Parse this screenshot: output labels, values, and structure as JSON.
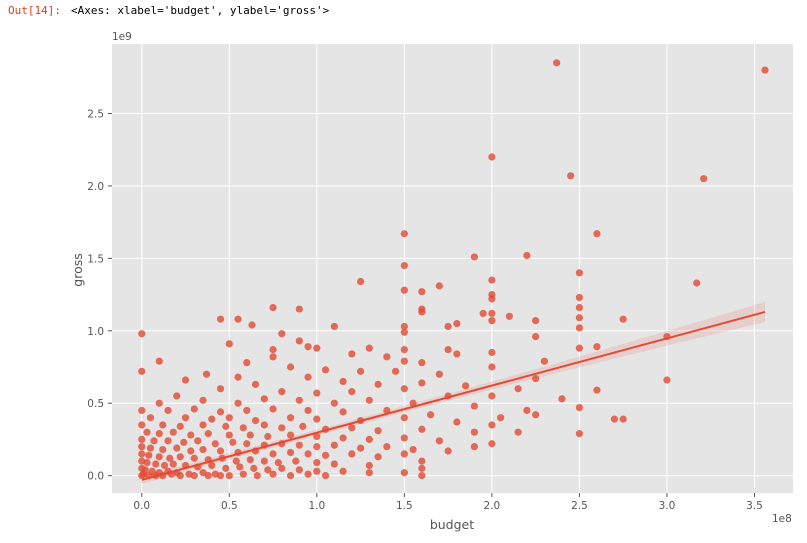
{
  "output": {
    "prompt": "Out[14]:",
    "repr": "<Axes: xlabel='budget', ylabel='gross'>"
  },
  "chart_data": {
    "type": "scatter",
    "style": "ggplot regplot with linear fit and confidence band",
    "xlabel": "budget",
    "ylabel": "gross",
    "x_offset_label": "1e8",
    "y_offset_label": "1e9",
    "xlim": [
      -0.17,
      3.72
    ],
    "ylim": [
      -0.12,
      2.98
    ],
    "xticks": [
      "0.0",
      "0.5",
      "1.0",
      "1.5",
      "2.0",
      "2.5",
      "3.0",
      "3.5"
    ],
    "yticks": [
      "0.0",
      "0.5",
      "1.0",
      "1.5",
      "2.0",
      "2.5"
    ],
    "grid": true,
    "colors": {
      "points": "#e24a33",
      "line": "#e24a33",
      "background": "#e5e5e5",
      "grid": "#ffffff"
    },
    "regression": {
      "x": [
        0.0,
        3.56
      ],
      "y": [
        -0.03,
        1.13
      ],
      "ci_halfwidth": [
        0.02,
        0.07
      ]
    },
    "points": [
      [
        2.37,
        2.85
      ],
      [
        3.56,
        2.8
      ],
      [
        2.0,
        2.2
      ],
      [
        2.45,
        2.07
      ],
      [
        3.21,
        2.05
      ],
      [
        2.6,
        1.67
      ],
      [
        1.5,
        1.67
      ],
      [
        1.9,
        1.51
      ],
      [
        2.2,
        1.52
      ],
      [
        1.5,
        1.45
      ],
      [
        2.5,
        1.4
      ],
      [
        3.17,
        1.33
      ],
      [
        2.0,
        1.35
      ],
      [
        1.25,
        1.34
      ],
      [
        1.7,
        1.31
      ],
      [
        1.5,
        1.28
      ],
      [
        1.6,
        1.27
      ],
      [
        2.0,
        1.25
      ],
      [
        2.5,
        1.23
      ],
      [
        2.0,
        1.22
      ],
      [
        2.5,
        1.16
      ],
      [
        1.6,
        1.15
      ],
      [
        0.75,
        1.16
      ],
      [
        0.9,
        1.15
      ],
      [
        1.95,
        1.12
      ],
      [
        2.0,
        1.12
      ],
      [
        1.6,
        1.13
      ],
      [
        2.1,
        1.1
      ],
      [
        2.5,
        1.09
      ],
      [
        0.45,
        1.08
      ],
      [
        0.55,
        1.08
      ],
      [
        2.75,
        1.08
      ],
      [
        2.25,
        1.07
      ],
      [
        2.0,
        1.07
      ],
      [
        1.8,
        1.05
      ],
      [
        1.75,
        1.03
      ],
      [
        0.63,
        1.04
      ],
      [
        1.1,
        1.03
      ],
      [
        1.5,
        1.03
      ],
      [
        2.5,
        1.02
      ],
      [
        0.0,
        0.98
      ],
      [
        1.5,
        0.99
      ],
      [
        0.8,
        0.98
      ],
      [
        2.25,
        0.96
      ],
      [
        3.0,
        0.96
      ],
      [
        0.5,
        0.91
      ],
      [
        0.9,
        0.93
      ],
      [
        0.95,
        0.89
      ],
      [
        1.0,
        0.88
      ],
      [
        2.5,
        0.88
      ],
      [
        2.6,
        0.89
      ],
      [
        1.3,
        0.88
      ],
      [
        1.5,
        0.87
      ],
      [
        1.75,
        0.87
      ],
      [
        0.75,
        0.87
      ],
      [
        1.2,
        0.84
      ],
      [
        2.0,
        0.85
      ],
      [
        1.8,
        0.84
      ],
      [
        1.4,
        0.82
      ],
      [
        0.1,
        0.79
      ],
      [
        0.75,
        0.82
      ],
      [
        1.5,
        0.79
      ],
      [
        2.3,
        0.79
      ],
      [
        1.6,
        0.78
      ],
      [
        0.6,
        0.78
      ],
      [
        0.0,
        0.72
      ],
      [
        0.37,
        0.7
      ],
      [
        0.85,
        0.75
      ],
      [
        1.05,
        0.73
      ],
      [
        1.25,
        0.72
      ],
      [
        1.45,
        0.72
      ],
      [
        2.0,
        0.75
      ],
      [
        2.25,
        0.67
      ],
      [
        1.7,
        0.7
      ],
      [
        0.95,
        0.68
      ],
      [
        0.55,
        0.68
      ],
      [
        0.25,
        0.66
      ],
      [
        1.15,
        0.65
      ],
      [
        1.6,
        0.64
      ],
      [
        2.6,
        0.59
      ],
      [
        3.0,
        0.66
      ],
      [
        0.65,
        0.63
      ],
      [
        1.35,
        0.63
      ],
      [
        1.85,
        0.62
      ],
      [
        2.15,
        0.6
      ],
      [
        0.45,
        0.6
      ],
      [
        0.2,
        0.55
      ],
      [
        0.8,
        0.58
      ],
      [
        1.0,
        0.57
      ],
      [
        1.2,
        0.58
      ],
      [
        1.5,
        0.6
      ],
      [
        1.75,
        0.55
      ],
      [
        2.0,
        0.55
      ],
      [
        2.4,
        0.53
      ],
      [
        0.1,
        0.5
      ],
      [
        0.35,
        0.52
      ],
      [
        0.55,
        0.5
      ],
      [
        0.7,
        0.53
      ],
      [
        0.9,
        0.52
      ],
      [
        1.1,
        0.5
      ],
      [
        1.3,
        0.52
      ],
      [
        1.55,
        0.5
      ],
      [
        1.9,
        0.48
      ],
      [
        2.2,
        0.45
      ],
      [
        2.5,
        0.47
      ],
      [
        0.0,
        0.45
      ],
      [
        0.15,
        0.45
      ],
      [
        0.3,
        0.46
      ],
      [
        0.45,
        0.44
      ],
      [
        0.6,
        0.45
      ],
      [
        0.75,
        0.46
      ],
      [
        0.95,
        0.45
      ],
      [
        1.15,
        0.44
      ],
      [
        1.4,
        0.45
      ],
      [
        1.65,
        0.42
      ],
      [
        2.05,
        0.4
      ],
      [
        2.7,
        0.39
      ],
      [
        2.75,
        0.39
      ],
      [
        2.25,
        0.42
      ],
      [
        0.05,
        0.4
      ],
      [
        0.25,
        0.4
      ],
      [
        0.4,
        0.39
      ],
      [
        0.5,
        0.4
      ],
      [
        0.65,
        0.38
      ],
      [
        0.85,
        0.4
      ],
      [
        1.0,
        0.39
      ],
      [
        1.25,
        0.38
      ],
      [
        1.5,
        0.4
      ],
      [
        1.8,
        0.37
      ],
      [
        2.0,
        0.35
      ],
      [
        0.0,
        0.35
      ],
      [
        0.12,
        0.35
      ],
      [
        0.22,
        0.34
      ],
      [
        0.35,
        0.35
      ],
      [
        0.48,
        0.34
      ],
      [
        0.58,
        0.33
      ],
      [
        0.7,
        0.35
      ],
      [
        0.8,
        0.33
      ],
      [
        0.92,
        0.34
      ],
      [
        1.05,
        0.32
      ],
      [
        1.2,
        0.33
      ],
      [
        1.35,
        0.31
      ],
      [
        1.6,
        0.32
      ],
      [
        1.9,
        0.3
      ],
      [
        2.5,
        0.29
      ],
      [
        2.15,
        0.3
      ],
      [
        0.03,
        0.3
      ],
      [
        0.1,
        0.29
      ],
      [
        0.18,
        0.3
      ],
      [
        0.28,
        0.28
      ],
      [
        0.38,
        0.29
      ],
      [
        0.5,
        0.28
      ],
      [
        0.62,
        0.28
      ],
      [
        0.72,
        0.27
      ],
      [
        0.85,
        0.28
      ],
      [
        1.0,
        0.27
      ],
      [
        1.15,
        0.26
      ],
      [
        1.3,
        0.25
      ],
      [
        1.5,
        0.26
      ],
      [
        1.7,
        0.24
      ],
      [
        2.0,
        0.22
      ],
      [
        1.9,
        0.2
      ],
      [
        0.0,
        0.25
      ],
      [
        0.07,
        0.24
      ],
      [
        0.15,
        0.24
      ],
      [
        0.24,
        0.23
      ],
      [
        0.32,
        0.24
      ],
      [
        0.42,
        0.22
      ],
      [
        0.52,
        0.23
      ],
      [
        0.6,
        0.22
      ],
      [
        0.7,
        0.21
      ],
      [
        0.8,
        0.22
      ],
      [
        0.9,
        0.21
      ],
      [
        1.0,
        0.2
      ],
      [
        1.1,
        0.21
      ],
      [
        1.25,
        0.19
      ],
      [
        1.4,
        0.2
      ],
      [
        1.55,
        0.18
      ],
      [
        1.75,
        0.17
      ],
      [
        0.0,
        0.2
      ],
      [
        0.05,
        0.19
      ],
      [
        0.12,
        0.18
      ],
      [
        0.2,
        0.19
      ],
      [
        0.28,
        0.17
      ],
      [
        0.35,
        0.18
      ],
      [
        0.45,
        0.17
      ],
      [
        0.55,
        0.16
      ],
      [
        0.65,
        0.17
      ],
      [
        0.75,
        0.15
      ],
      [
        0.85,
        0.16
      ],
      [
        0.95,
        0.15
      ],
      [
        1.05,
        0.14
      ],
      [
        1.2,
        0.15
      ],
      [
        1.35,
        0.13
      ],
      [
        1.5,
        0.15
      ],
      [
        1.6,
        0.1
      ],
      [
        0.0,
        0.15
      ],
      [
        0.04,
        0.14
      ],
      [
        0.1,
        0.13
      ],
      [
        0.16,
        0.12
      ],
      [
        0.22,
        0.13
      ],
      [
        0.3,
        0.12
      ],
      [
        0.38,
        0.11
      ],
      [
        0.46,
        0.12
      ],
      [
        0.54,
        0.1
      ],
      [
        0.62,
        0.11
      ],
      [
        0.7,
        0.1
      ],
      [
        0.78,
        0.09
      ],
      [
        0.88,
        0.1
      ],
      [
        1.0,
        0.09
      ],
      [
        1.1,
        0.08
      ],
      [
        1.3,
        0.07
      ],
      [
        1.6,
        0.05
      ],
      [
        0.0,
        0.1
      ],
      [
        0.03,
        0.09
      ],
      [
        0.08,
        0.08
      ],
      [
        0.13,
        0.07
      ],
      [
        0.18,
        0.08
      ],
      [
        0.25,
        0.07
      ],
      [
        0.32,
        0.06
      ],
      [
        0.4,
        0.07
      ],
      [
        0.48,
        0.05
      ],
      [
        0.56,
        0.06
      ],
      [
        0.64,
        0.05
      ],
      [
        0.72,
        0.04
      ],
      [
        0.8,
        0.05
      ],
      [
        0.9,
        0.04
      ],
      [
        1.0,
        0.03
      ],
      [
        1.15,
        0.03
      ],
      [
        1.3,
        0.02
      ],
      [
        1.5,
        0.02
      ],
      [
        1.6,
        0.0
      ],
      [
        0.0,
        0.05
      ],
      [
        0.02,
        0.04
      ],
      [
        0.06,
        0.03
      ],
      [
        0.1,
        0.02
      ],
      [
        0.15,
        0.03
      ],
      [
        0.2,
        0.02
      ],
      [
        0.27,
        0.01
      ],
      [
        0.35,
        0.02
      ],
      [
        0.42,
        0.01
      ],
      [
        0.5,
        0.0
      ],
      [
        0.58,
        0.01
      ],
      [
        0.66,
        0.0
      ],
      [
        0.75,
        0.01
      ],
      [
        0.85,
        0.0
      ],
      [
        0.95,
        0.01
      ],
      [
        1.05,
        0.0
      ],
      [
        0.0,
        0.0
      ],
      [
        0.01,
        0.01
      ],
      [
        0.04,
        0.0
      ],
      [
        0.08,
        0.0
      ],
      [
        0.12,
        0.0
      ],
      [
        0.17,
        0.01
      ],
      [
        0.22,
        0.0
      ],
      [
        0.3,
        0.0
      ],
      [
        0.38,
        0.0
      ],
      [
        0.45,
        0.0
      ]
    ]
  }
}
